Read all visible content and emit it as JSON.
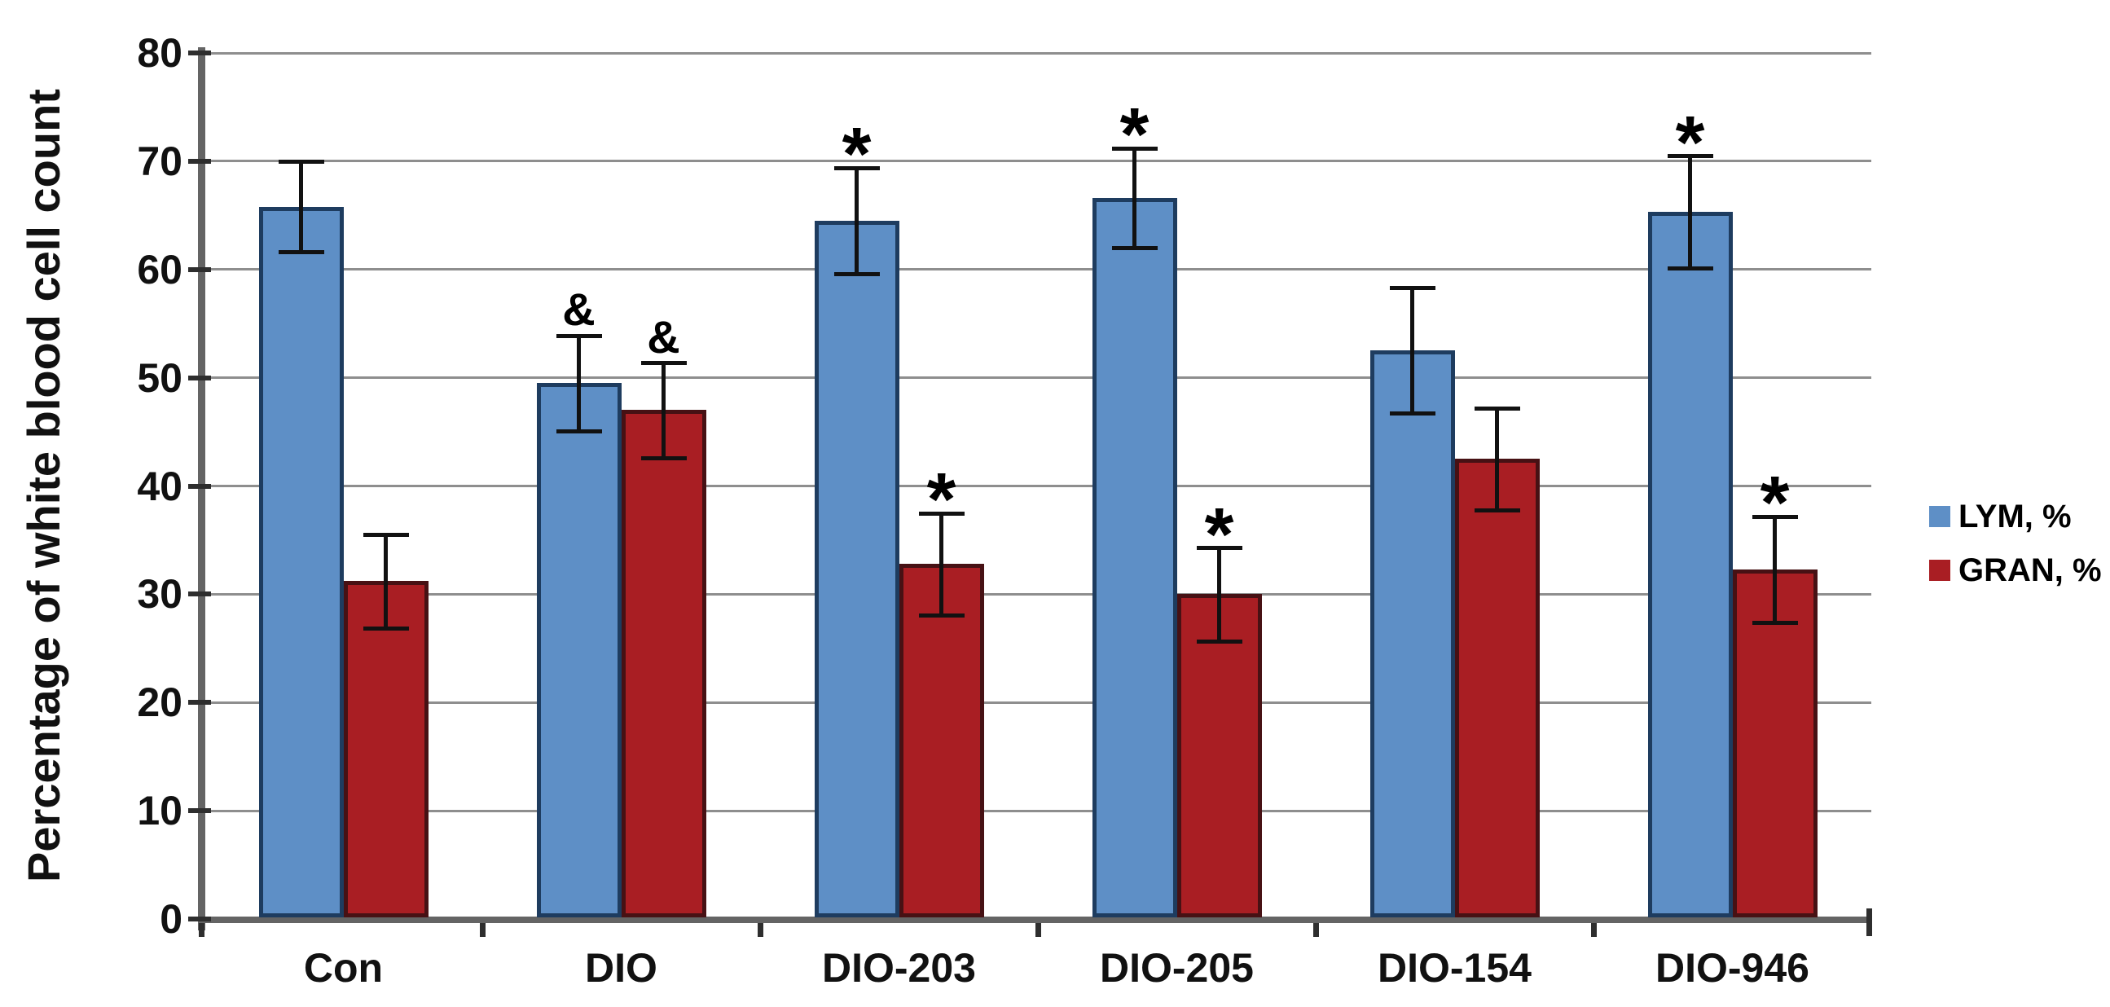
{
  "chart_data": {
    "type": "bar",
    "title": "",
    "ylabel": "Percentage of white blood cell count",
    "xlabel": "",
    "ylim": [
      0,
      80
    ],
    "ytick_step": 10,
    "ytick_labels": [
      "0",
      "10",
      "20",
      "30",
      "40",
      "50",
      "60",
      "70",
      "80"
    ],
    "grid": true,
    "legend_position": "right",
    "categories": [
      "Con",
      "DIO",
      "DIO-203",
      "DIO-205",
      "DIO-154",
      "DIO-946"
    ],
    "series": [
      {
        "name": "LYM, %",
        "color": "#5E8FC6",
        "border_color": "#1E3C5F",
        "values": [
          65.8,
          49.5,
          64.5,
          66.6,
          52.5,
          65.3
        ],
        "errors": [
          4.2,
          4.4,
          4.9,
          4.6,
          5.8,
          5.2
        ],
        "annotations": [
          "",
          "&",
          "*",
          "*",
          "",
          "*"
        ]
      },
      {
        "name": "GRAN, %",
        "color": "#A91E23",
        "border_color": "#471114",
        "values": [
          31.2,
          47.0,
          32.8,
          30.0,
          42.5,
          32.3
        ],
        "errors": [
          4.3,
          4.4,
          4.7,
          4.3,
          4.7,
          4.9
        ],
        "annotations": [
          "",
          "&",
          "*",
          "*",
          "",
          "*"
        ]
      }
    ]
  }
}
